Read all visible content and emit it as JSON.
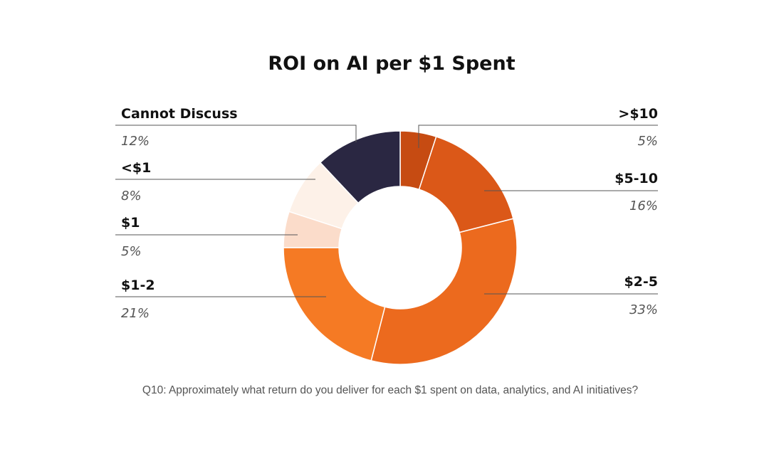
{
  "chart_data": {
    "type": "pie",
    "title": "ROI on AI per $1 Spent",
    "donut": true,
    "slices": [
      {
        "label": ">$10",
        "value": 5,
        "value_label": "5%",
        "color": "#c64b12"
      },
      {
        "label": "$5-10",
        "value": 16,
        "value_label": "16%",
        "color": "#db5818"
      },
      {
        "label": "$2-5",
        "value": 33,
        "value_label": "33%",
        "color": "#ec6a1e"
      },
      {
        "label": "$1-2",
        "value": 21,
        "value_label": "21%",
        "color": "#f57a24"
      },
      {
        "label": "$1",
        "value": 5,
        "value_label": "5%",
        "color": "#fbdcca"
      },
      {
        "label": "<$1",
        "value": 8,
        "value_label": "8%",
        "color": "#fdf1e8"
      },
      {
        "label": "Cannot Discuss",
        "value": 12,
        "value_label": "12%",
        "color": "#2a2742"
      }
    ],
    "caption": "Q10: Approximately what return do you deliver for each $1 spent on data, analytics, and AI initiatives?"
  }
}
